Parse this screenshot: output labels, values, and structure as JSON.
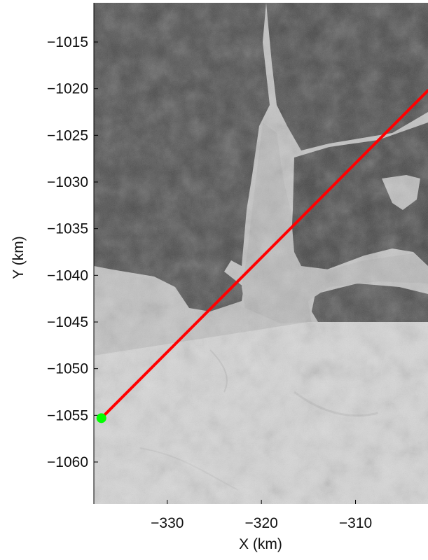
{
  "chart_data": {
    "type": "map",
    "xlabel": "X (km)",
    "ylabel": "Y (km)",
    "xlim": [
      -337.8,
      -302.3
    ],
    "ylim": [
      -1064.5,
      -1010.8
    ],
    "xticks": [
      -330,
      -320,
      -310
    ],
    "yticks": [
      -1015,
      -1020,
      -1025,
      -1030,
      -1035,
      -1040,
      -1045,
      -1050,
      -1055,
      -1060
    ],
    "xtick_labels": [
      "−330",
      "−320",
      "−310"
    ],
    "ytick_labels": [
      "−1015",
      "−1020",
      "−1025",
      "−1030",
      "−1035",
      "−1040",
      "−1045",
      "−1050",
      "−1055",
      "−1060"
    ],
    "profile_line": {
      "color": "#ff0000",
      "x": [
        -337.0,
        -302.3
      ],
      "y": [
        -1055.3,
        -1020.2
      ]
    },
    "start_point": {
      "color": "#00ff00",
      "x": -337.0,
      "y": -1055.3
    },
    "background": "grayscale satellite image of a glacier outlet fjord with dark rocky terrain and light ice"
  }
}
